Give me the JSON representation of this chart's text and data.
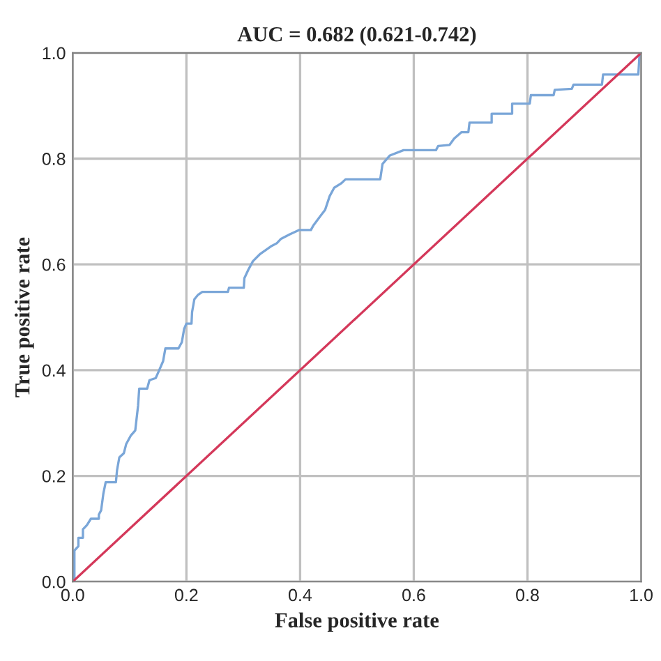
{
  "chart_data": {
    "type": "line",
    "title": "AUC = 0.682 (0.621-0.742)",
    "xlabel": "False positive rate",
    "ylabel": "True positive rate",
    "xlim": [
      0,
      1
    ],
    "ylim": [
      0,
      1
    ],
    "xticks": [
      {
        "value": 0,
        "label": "0.0"
      },
      {
        "value": 0.2,
        "label": "0.2"
      },
      {
        "value": 0.4,
        "label": "0.4"
      },
      {
        "value": 0.6,
        "label": "0.6"
      },
      {
        "value": 0.8,
        "label": "0.8"
      },
      {
        "value": 1,
        "label": "1.0"
      }
    ],
    "yticks": [
      {
        "value": 0,
        "label": "0.0"
      },
      {
        "value": 0.2,
        "label": "0.2"
      },
      {
        "value": 0.4,
        "label": "0.4"
      },
      {
        "value": 0.6,
        "label": "0.6"
      },
      {
        "value": 0.8,
        "label": "0.8"
      },
      {
        "value": 1,
        "label": "1.0"
      }
    ],
    "grid": true,
    "series": [
      {
        "color": "#7aa6d8",
        "x": [
          0,
          0.003,
          0.003,
          0.01,
          0.01,
          0.018,
          0.018,
          0.025,
          0.032,
          0.046,
          0.046,
          0.05,
          0.054,
          0.058,
          0.076,
          0.078,
          0.082,
          0.09,
          0.094,
          0.102,
          0.11,
          0.115,
          0.117,
          0.131,
          0.135,
          0.146,
          0.151,
          0.159,
          0.163,
          0.186,
          0.192,
          0.196,
          0.2,
          0.209,
          0.21,
          0.214,
          0.22,
          0.228,
          0.273,
          0.275,
          0.301,
          0.302,
          0.309,
          0.317,
          0.33,
          0.35,
          0.359,
          0.366,
          0.382,
          0.398,
          0.419,
          0.423,
          0.436,
          0.444,
          0.452,
          0.46,
          0.472,
          0.48,
          0.541,
          0.545,
          0.558,
          0.582,
          0.639,
          0.643,
          0.663,
          0.671,
          0.684,
          0.696,
          0.698,
          0.737,
          0.737,
          0.773,
          0.773,
          0.804,
          0.806,
          0.846,
          0.848,
          0.878,
          0.881,
          0.931,
          0.933,
          0.995,
          0.997,
          1.0
        ],
        "values": [
          0,
          0,
          0.059,
          0.067,
          0.083,
          0.083,
          0.099,
          0.107,
          0.119,
          0.119,
          0.127,
          0.135,
          0.167,
          0.188,
          0.188,
          0.211,
          0.235,
          0.243,
          0.26,
          0.276,
          0.286,
          0.333,
          0.365,
          0.365,
          0.381,
          0.385,
          0.397,
          0.417,
          0.441,
          0.441,
          0.453,
          0.478,
          0.488,
          0.488,
          0.51,
          0.534,
          0.542,
          0.548,
          0.548,
          0.556,
          0.556,
          0.574,
          0.59,
          0.606,
          0.62,
          0.635,
          0.64,
          0.648,
          0.657,
          0.665,
          0.665,
          0.673,
          0.692,
          0.703,
          0.729,
          0.745,
          0.753,
          0.761,
          0.761,
          0.79,
          0.806,
          0.816,
          0.816,
          0.824,
          0.826,
          0.838,
          0.85,
          0.85,
          0.868,
          0.868,
          0.885,
          0.885,
          0.904,
          0.904,
          0.92,
          0.92,
          0.93,
          0.932,
          0.94,
          0.94,
          0.959,
          0.959,
          0.995,
          1.0
        ]
      },
      {
        "color": "#d4385a",
        "x": [
          0,
          1
        ],
        "values": [
          0,
          1
        ]
      }
    ]
  }
}
